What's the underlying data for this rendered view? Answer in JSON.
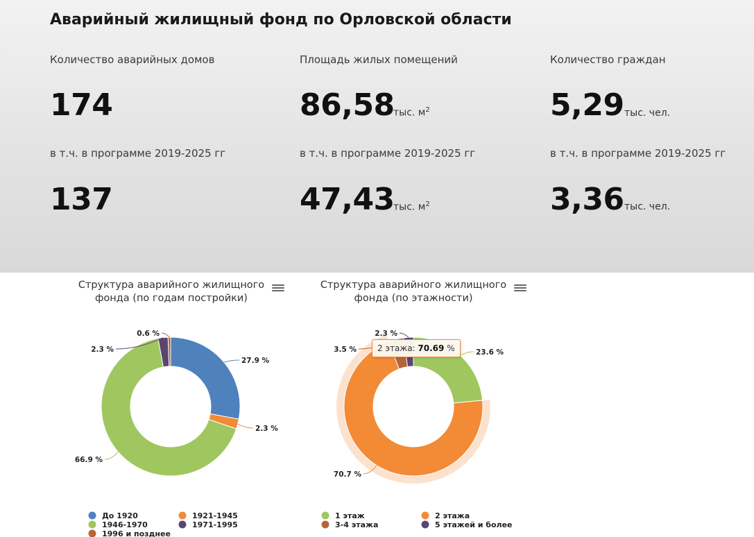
{
  "page": {
    "title": "Аварийный жилищный фонд по Орловской области"
  },
  "stats": [
    {
      "label": "Количество аварийных домов",
      "value": "174",
      "unit": "",
      "unit_sup": "",
      "sub_label": "в т.ч. в программе 2019-2025 гг",
      "sub_value": "137",
      "sub_unit": "",
      "sub_unit_sup": ""
    },
    {
      "label": "Площадь жилых помещений",
      "value": "86,58",
      "unit": "тыс. м",
      "unit_sup": "2",
      "sub_label": "в т.ч. в программе 2019-2025 гг",
      "sub_value": "47,43",
      "sub_unit": "тыс. м",
      "sub_unit_sup": "2"
    },
    {
      "label": "Количество граждан",
      "value": "5,29",
      "unit": "тыс. чел.",
      "unit_sup": "",
      "sub_label": "в т.ч. в программе 2019-2025 гг",
      "sub_value": "3,36",
      "sub_unit": "тыс. чел.",
      "sub_unit_sup": ""
    }
  ],
  "chart_data": [
    {
      "type": "pie",
      "title": "Структура аварийного жилищного фонда (по годам постройки)",
      "title_lines": [
        "Структура аварийного жилищного",
        "фонда (по годам постройки)"
      ],
      "legend_placement": "bottom",
      "series": [
        {
          "name": "До 1920",
          "value": 27.9,
          "label": "27.9 %",
          "color": "#4f81bd"
        },
        {
          "name": "1921-1945",
          "value": 2.3,
          "label": "2.3 %",
          "color": "#f28a36"
        },
        {
          "name": "1946-1970",
          "value": 66.9,
          "label": "66.9 %",
          "color": "#a0c75f"
        },
        {
          "name": "1971-1995",
          "value": 2.3,
          "label": "2.3 %",
          "color": "#5a4671"
        },
        {
          "name": "1996 и позднее",
          "value": 0.6,
          "label": "0.6 %",
          "color": "#b5653a"
        }
      ]
    },
    {
      "type": "pie",
      "title": "Структура аварийного жилищного фонда (по этажности)",
      "title_lines": [
        "Структура аварийного жилищного",
        "фонда (по этажности)"
      ],
      "legend_placement": "bottom",
      "tooltip": {
        "prefix": "2 этажа: ",
        "value": "70.69",
        "suffix": " %"
      },
      "series": [
        {
          "name": "1 этаж",
          "value": 23.6,
          "label": "23.6 %",
          "color": "#a0c75f"
        },
        {
          "name": "2 этажа",
          "value": 70.7,
          "label": "70.7 %",
          "color": "#f28a36",
          "hovered": true
        },
        {
          "name": "3-4 этажа",
          "value": 3.5,
          "label": "3.5 %",
          "color": "#b5653a"
        },
        {
          "name": "5 этажей и более",
          "value": 2.3,
          "label": "2.3 %",
          "color": "#5a4671"
        }
      ]
    }
  ]
}
